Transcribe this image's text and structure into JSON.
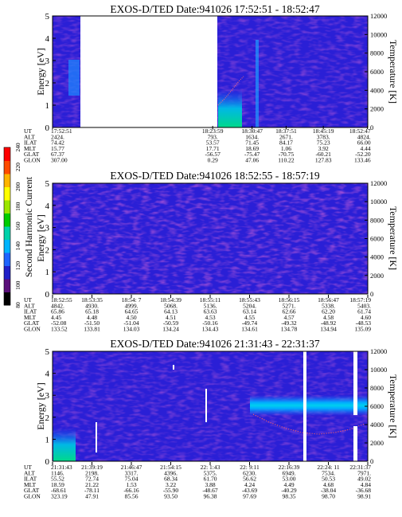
{
  "panels": [
    {
      "title": "EXOS-D/TED   Date:941026   17:52:51 - 18:52:47",
      "ylabel": "Energy [eV]",
      "y2label": "Temperature [K]",
      "yticks": [
        "0",
        "1",
        "2",
        "3",
        "4",
        "5"
      ],
      "y2ticks": [
        "0",
        "2000",
        "4000",
        "6000",
        "8000",
        "10000",
        "12000"
      ],
      "row_labels": [
        "UT",
        "ALT",
        "ILAT",
        "MLT",
        "GLAT",
        "GLON"
      ],
      "columns": [
        {
          "pos": 0.0,
          "values": [
            "17:52:51",
            "2424.",
            "74.42",
            "15.77",
            "67.37",
            "307.00"
          ]
        },
        {
          "pos": 0.508,
          "values": [
            "18:23:59",
            "793.",
            "53.57",
            "17.71",
            "-56.57",
            "0.29"
          ]
        },
        {
          "pos": 0.633,
          "values": [
            "18:30:47",
            "1634.",
            "71.45",
            "18.69",
            "-75.47",
            "47.06"
          ]
        },
        {
          "pos": 0.741,
          "values": [
            "18:37:51",
            "2671.",
            "84.17",
            "1.06",
            "-70.75",
            "110.22"
          ]
        },
        {
          "pos": 0.859,
          "values": [
            "18:45:19",
            "3783.",
            "75.23",
            "3.92",
            "-60.21",
            "127.83"
          ]
        },
        {
          "pos": 0.999,
          "values": [
            "18:52:47",
            "4824.",
            "66.00",
            "4.44",
            "-52.20",
            "133.46"
          ]
        }
      ]
    },
    {
      "title": "EXOS-D/TED   Date:941026   18:52:55 - 18:57:19",
      "ylabel": "Energy [eV]",
      "y2label": "Temperature [K]",
      "yticks": [
        "0",
        "1",
        "2",
        "3",
        "4",
        "5"
      ],
      "y2ticks": [
        "0",
        "2000",
        "4000",
        "6000",
        "8000",
        "10000",
        "12000"
      ],
      "row_labels": [
        "UT",
        "ALT",
        "ILAT",
        "MLT",
        "GLAT",
        "GLON"
      ],
      "columns": [
        {
          "pos": 0.0,
          "values": [
            "18:52:55",
            "4842.",
            "65.86",
            "4.45",
            "-52.08",
            "133.52"
          ]
        },
        {
          "pos": 0.125,
          "values": [
            "18:53:35",
            "4930.",
            "65.18",
            "4.48",
            "-51.50",
            "133.81"
          ]
        },
        {
          "pos": 0.25,
          "values": [
            "18:54: 7",
            "4999.",
            "64.65",
            "4.50",
            "-51.04",
            "134.03"
          ]
        },
        {
          "pos": 0.375,
          "values": [
            "18:54:39",
            "5068.",
            "64.13",
            "4.51",
            "-50.59",
            "134.24"
          ]
        },
        {
          "pos": 0.5,
          "values": [
            "18:55:11",
            "5136.",
            "63.63",
            "4.53",
            "-50.16",
            "134.43"
          ]
        },
        {
          "pos": 0.625,
          "values": [
            "18:55:43",
            "5204.",
            "63.14",
            "4.55",
            "-49.74",
            "134.61"
          ]
        },
        {
          "pos": 0.75,
          "values": [
            "18:56:15",
            "5271.",
            "62.66",
            "4.57",
            "-49.32",
            "134.78"
          ]
        },
        {
          "pos": 0.875,
          "values": [
            "18:56:47",
            "5338.",
            "62.20",
            "4.58",
            "-48.92",
            "134.94"
          ]
        },
        {
          "pos": 1.0,
          "values": [
            "18:57:19",
            "5403.",
            "61.74",
            "4.60",
            "-48.53",
            "135.09"
          ]
        }
      ]
    },
    {
      "title": "EXOS-D/TED   Date:941026   21:31:43 - 22:31:37",
      "ylabel": "Energy [eV]",
      "y2label": "Temperature [K]",
      "yticks": [
        "0",
        "1",
        "2",
        "3",
        "4",
        "5"
      ],
      "y2ticks": [
        "0",
        "2000",
        "4000",
        "6000",
        "8000",
        "10000",
        "12000"
      ],
      "row_labels": [
        "UT",
        "ALT",
        "ILAT",
        "MLT",
        "GLAT",
        "GLON"
      ],
      "columns": [
        {
          "pos": 0.0,
          "values": [
            "21:31:43",
            "1146.",
            "55.52",
            "18.59",
            "-68.61",
            "323.19"
          ]
        },
        {
          "pos": 0.125,
          "values": [
            "21:39:19",
            "2198.",
            "72.74",
            "21.22",
            "-78.11",
            "47.91"
          ]
        },
        {
          "pos": 0.25,
          "values": [
            "21:46:47",
            "3317.",
            "75.04",
            "1.53",
            "-66.16",
            "85.56"
          ]
        },
        {
          "pos": 0.375,
          "values": [
            "21:54:15",
            "4396.",
            "68.34",
            "3.22",
            "-55.90",
            "93.50"
          ]
        },
        {
          "pos": 0.5,
          "values": [
            "22: 1:43",
            "5375.",
            "61.70",
            "3.88",
            "-48.67",
            "96.38"
          ]
        },
        {
          "pos": 0.625,
          "values": [
            "22: 9:11",
            "6230.",
            "56.62",
            "4.24",
            "-43.69",
            "97.69"
          ]
        },
        {
          "pos": 0.75,
          "values": [
            "22:16:39",
            "6949.",
            "53.00",
            "4.49",
            "-40.29",
            "98.35"
          ]
        },
        {
          "pos": 0.875,
          "values": [
            "22:24: 11",
            "7534.",
            "50.53",
            "4.68",
            "-38.04",
            "98.70"
          ]
        },
        {
          "pos": 1.0,
          "values": [
            "22:31:37",
            "7971.",
            "49.02",
            "4.84",
            "-36.68",
            "98.91"
          ]
        }
      ]
    }
  ],
  "colorbar": {
    "label": "Second Harmonic Current",
    "ticks": [
      "80",
      "100",
      "120",
      "140",
      "160",
      "180",
      "200",
      "220",
      "240"
    ],
    "colors": [
      "#000000",
      "#5a0f7a",
      "#2020c8",
      "#1e64ff",
      "#00b4ff",
      "#00d2aa",
      "#00cc00",
      "#9be600",
      "#ffff00",
      "#ffb400",
      "#ff4b00",
      "#ff0000"
    ]
  },
  "chart_data": [
    {
      "type": "heatmap",
      "title": "EXOS-D/TED   Date:941026   17:52:51 - 18:52:47",
      "x_start": "17:52:51",
      "x_end": "18:52:47",
      "ylabel": "Energy [eV]",
      "ylim": [
        0,
        5
      ],
      "y2label": "Temperature [K]",
      "y2lim": [
        0,
        12000
      ],
      "data_gap": [
        "17:56",
        "18:23:59"
      ],
      "features": [
        {
          "x_start": "17:52:51",
          "x_end": "17:56:00",
          "energy_range": [
            1.5,
            2.5
          ],
          "level": "enhanced"
        },
        {
          "x_start": "18:23:59",
          "x_end": "18:28:00",
          "energy_range": [
            0,
            1.3
          ],
          "level": "high"
        },
        {
          "x": "18:30:47",
          "energy_range": [
            0,
            4.8
          ],
          "level": "narrow enhancement"
        }
      ],
      "colorbar_range": [
        80,
        240
      ]
    },
    {
      "type": "heatmap",
      "title": "EXOS-D/TED   Date:941026   18:52:55 - 18:57:19",
      "x_start": "18:52:55",
      "x_end": "18:57:19",
      "ylabel": "Energy [eV]",
      "ylim": [
        0,
        5
      ],
      "y2label": "Temperature [K]",
      "y2lim": [
        0,
        12000
      ],
      "features": [
        {
          "energy_range": [
            0,
            5
          ],
          "level": "uniform background"
        }
      ],
      "colorbar_range": [
        80,
        240
      ]
    },
    {
      "type": "heatmap",
      "title": "EXOS-D/TED   Date:941026   21:31:43 - 22:31:37",
      "x_start": "21:31:43",
      "x_end": "22:31:37",
      "ylabel": "Energy [eV]",
      "ylim": [
        0,
        5
      ],
      "y2label": "Temperature [K]",
      "y2lim": [
        0,
        12000
      ],
      "features": [
        {
          "x_start": "21:31:43",
          "x_end": "21:34:30",
          "energy_range": [
            0,
            1.2
          ],
          "level": "high"
        },
        {
          "x_start": "22: 9:11",
          "x_end": "22:31:37",
          "energy_range": [
            2.1,
            2.6
          ],
          "level": "enhanced band"
        }
      ],
      "data_gaps": [
        [
          "22:23:20",
          "22:24:00"
        ],
        [
          "22:30:45",
          "22:31:15"
        ]
      ],
      "temperature_trace": {
        "x_start": "22: 9:11",
        "x_end": "22:31:37",
        "temperature_K": [
          6500,
          6000,
          5300,
          4800,
          4600,
          4500,
          4700
        ]
      },
      "colorbar_range": [
        80,
        240
      ]
    }
  ]
}
